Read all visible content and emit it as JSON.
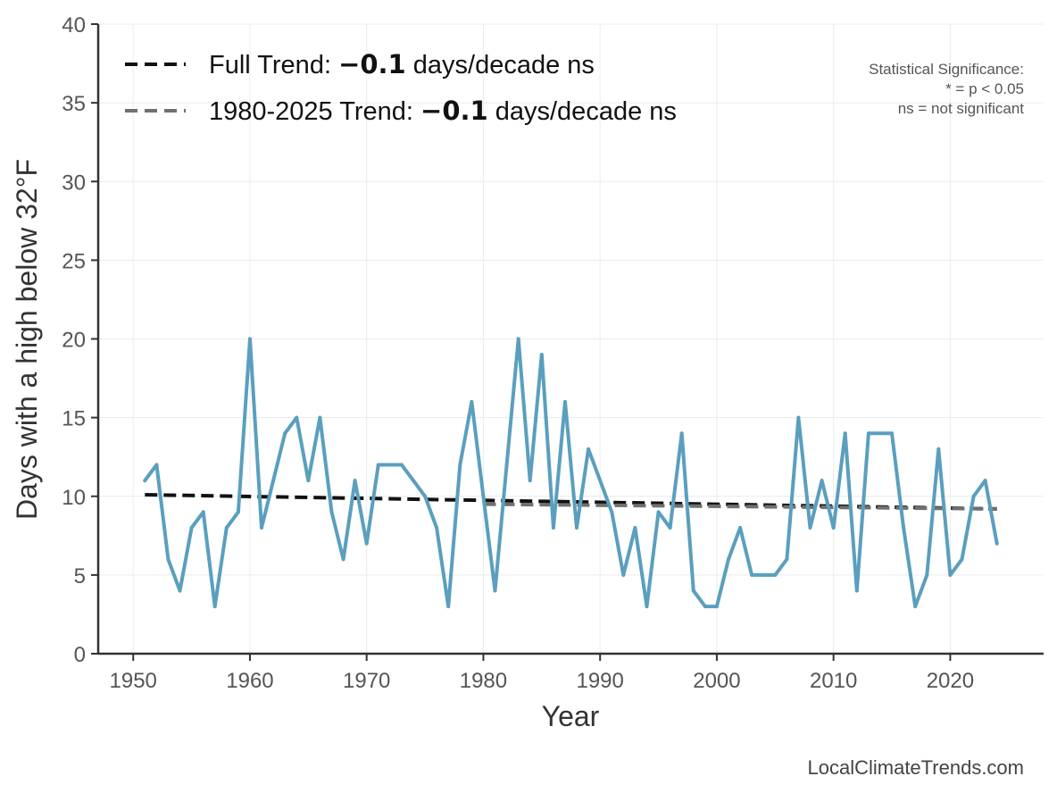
{
  "chart_data": {
    "type": "line",
    "ylabel": "Days with a high below 32°F",
    "xlabel": "Year",
    "xlim": [
      1947,
      2028
    ],
    "ylim": [
      0,
      40
    ],
    "x_ticks": [
      1950,
      1960,
      1970,
      1980,
      1990,
      2000,
      2010,
      2020
    ],
    "y_ticks": [
      0,
      5,
      10,
      15,
      20,
      25,
      30,
      35,
      40
    ],
    "grid": true,
    "series": [
      {
        "name": "Days with a high below 32°F",
        "color": "#5a9fbe",
        "x": [
          1951,
          1952,
          1953,
          1954,
          1955,
          1956,
          1957,
          1958,
          1959,
          1960,
          1961,
          1962,
          1963,
          1964,
          1965,
          1966,
          1967,
          1968,
          1969,
          1970,
          1971,
          1972,
          1973,
          1974,
          1975,
          1976,
          1977,
          1978,
          1979,
          1980,
          1981,
          1982,
          1983,
          1984,
          1985,
          1986,
          1987,
          1988,
          1989,
          1990,
          1991,
          1992,
          1993,
          1994,
          1995,
          1996,
          1997,
          1998,
          1999,
          2000,
          2001,
          2002,
          2003,
          2004,
          2005,
          2006,
          2007,
          2008,
          2009,
          2010,
          2011,
          2012,
          2013,
          2014,
          2015,
          2016,
          2017,
          2018,
          2019,
          2020,
          2021,
          2022,
          2023,
          2024
        ],
        "values": [
          11,
          12,
          6,
          4,
          8,
          9,
          3,
          8,
          9,
          20,
          8,
          11,
          14,
          15,
          11,
          15,
          9,
          6,
          11,
          7,
          12,
          12,
          12,
          11,
          10,
          8,
          3,
          12,
          16,
          10,
          4,
          12,
          20,
          11,
          19,
          8,
          16,
          8,
          13,
          11,
          9,
          5,
          8,
          3,
          9,
          8,
          14,
          4,
          3,
          3,
          6,
          8,
          5,
          5,
          5,
          6,
          15,
          8,
          11,
          8,
          14,
          4,
          14,
          14,
          14,
          8,
          3,
          5,
          13,
          5,
          6,
          10,
          11,
          7
        ]
      }
    ],
    "trends": [
      {
        "name": "Full Trend",
        "legend_label": "Full Trend: ",
        "value_text": "−0.1",
        "suffix": " days/decade ns",
        "color": "#111111",
        "start": [
          1951,
          10.1
        ],
        "end": [
          2024,
          9.2
        ]
      },
      {
        "name": "1980-2025 Trend",
        "legend_label": "1980-2025 Trend: ",
        "value_text": "−0.1",
        "suffix": " days/decade ns",
        "color": "#707070",
        "start": [
          1980,
          9.5
        ],
        "end": [
          2024,
          9.2
        ]
      }
    ],
    "significance_note": [
      "Statistical Significance:",
      "* = p < 0.05",
      "ns = not significant"
    ],
    "legend_position": "top-left",
    "watermark": "LocalClimateTrends.com"
  }
}
